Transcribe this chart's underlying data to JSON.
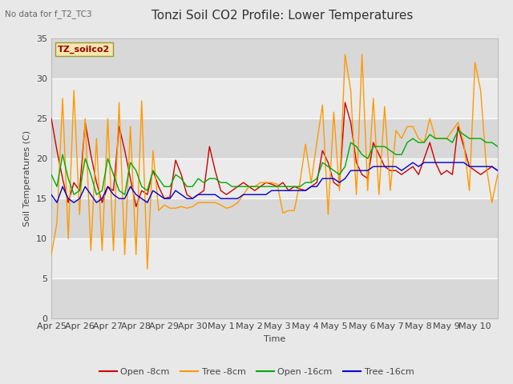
{
  "title": "Tonzi Soil CO2 Profile: Lower Temperatures",
  "subtitle": "No data for f_T2_TC3",
  "ylabel": "Soil Temperatures (C)",
  "xlabel": "Time",
  "ylim": [
    0,
    35
  ],
  "fig_bg_color": "#e8e8e8",
  "plot_bg_color": "#ffffff",
  "watermark": "TZ_soilco2",
  "x_labels": [
    "Apr 25",
    "Apr 26",
    "Apr 27",
    "Apr 28",
    "Apr 29",
    "Apr 30",
    "May 1",
    "May 2",
    "May 3",
    "May 4",
    "May 5",
    "May 6",
    "May 7",
    "May 8",
    "May 9",
    "May 10"
  ],
  "zebra_colors": [
    "#dcdcdc",
    "#f0f0f0"
  ],
  "zebra_bands": [
    [
      0,
      5
    ],
    [
      5,
      10
    ],
    [
      10,
      15
    ],
    [
      15,
      20
    ],
    [
      20,
      25
    ],
    [
      25,
      30
    ],
    [
      30,
      35
    ]
  ],
  "series": {
    "open_8cm": {
      "color": "#cc0000",
      "label": "Open -8cm",
      "values": [
        25.0,
        21.0,
        17.5,
        14.5,
        17.0,
        16.0,
        24.5,
        20.5,
        17.0,
        14.5,
        16.5,
        16.0,
        24.0,
        21.0,
        17.5,
        14.0,
        16.0,
        15.5,
        18.5,
        16.5,
        15.0,
        15.2,
        19.8,
        18.0,
        15.5,
        15.0,
        15.5,
        16.0,
        21.5,
        18.5,
        16.0,
        15.5,
        16.0,
        16.5,
        17.0,
        16.5,
        16.0,
        16.5,
        17.0,
        16.8,
        16.5,
        17.0,
        16.0,
        16.5,
        16.2,
        16.0,
        16.5,
        17.0,
        21.0,
        19.5,
        17.0,
        16.5,
        27.0,
        24.5,
        19.5,
        18.0,
        17.5,
        22.0,
        20.5,
        19.0,
        18.5,
        18.5,
        18.0,
        18.5,
        19.0,
        18.0,
        20.0,
        22.0,
        19.5,
        18.0,
        18.5,
        18.0,
        24.0,
        21.5,
        19.0,
        18.5,
        18.0,
        18.5,
        19.0,
        18.5
      ]
    },
    "tree_8cm": {
      "color": "#ff9900",
      "label": "Tree -8cm",
      "values": [
        8.0,
        12.0,
        27.5,
        10.0,
        28.5,
        13.0,
        25.0,
        8.5,
        22.5,
        8.5,
        25.0,
        8.5,
        27.0,
        8.0,
        24.0,
        8.0,
        27.2,
        6.2,
        21.0,
        13.5,
        14.2,
        13.8,
        13.8,
        14.0,
        13.8,
        14.0,
        14.5,
        14.5,
        14.5,
        14.5,
        14.2,
        13.8,
        14.0,
        14.5,
        15.5,
        16.5,
        16.5,
        17.0,
        17.0,
        17.0,
        16.8,
        13.2,
        13.5,
        13.5,
        17.0,
        21.8,
        17.0,
        22.0,
        26.7,
        13.0,
        25.8,
        16.0,
        33.0,
        28.5,
        15.5,
        33.0,
        16.0,
        27.5,
        15.5,
        26.5,
        16.0,
        23.5,
        22.5,
        24.0,
        24.0,
        22.5,
        22.0,
        25.0,
        22.5,
        22.5,
        22.5,
        23.5,
        24.5,
        22.0,
        16.0,
        32.0,
        28.5,
        19.0,
        14.5,
        18.0
      ]
    },
    "open_16cm": {
      "color": "#00aa00",
      "label": "Open -16cm",
      "values": [
        18.0,
        16.5,
        20.5,
        17.5,
        15.5,
        16.0,
        20.0,
        18.0,
        15.5,
        16.0,
        20.0,
        18.0,
        16.0,
        15.5,
        19.5,
        18.5,
        16.5,
        16.0,
        18.5,
        17.5,
        16.5,
        16.5,
        18.0,
        17.5,
        16.5,
        16.5,
        17.5,
        17.0,
        17.5,
        17.5,
        17.0,
        17.0,
        16.5,
        16.5,
        16.5,
        16.5,
        16.5,
        16.5,
        16.5,
        16.5,
        16.5,
        16.5,
        16.5,
        16.5,
        16.5,
        17.0,
        17.0,
        17.5,
        19.5,
        19.0,
        18.5,
        18.0,
        19.0,
        22.0,
        21.5,
        20.5,
        20.0,
        21.5,
        21.5,
        21.5,
        21.0,
        20.5,
        20.5,
        22.0,
        22.5,
        22.0,
        22.0,
        23.0,
        22.5,
        22.5,
        22.5,
        22.0,
        23.5,
        23.0,
        22.5,
        22.5,
        22.5,
        22.0,
        22.0,
        21.5
      ]
    },
    "tree_16cm": {
      "color": "#0000cc",
      "label": "Tree -16cm",
      "values": [
        15.5,
        14.5,
        16.5,
        15.0,
        14.5,
        15.0,
        16.5,
        15.5,
        14.5,
        15.0,
        16.5,
        15.5,
        15.0,
        15.0,
        16.5,
        15.5,
        15.0,
        14.5,
        16.0,
        15.5,
        15.0,
        15.0,
        16.0,
        15.5,
        15.0,
        15.0,
        15.5,
        15.5,
        15.5,
        15.5,
        15.0,
        15.0,
        15.0,
        15.0,
        15.5,
        15.5,
        15.5,
        15.5,
        15.5,
        16.0,
        16.0,
        16.0,
        16.0,
        16.0,
        16.0,
        16.0,
        16.5,
        16.5,
        17.5,
        17.5,
        17.5,
        17.0,
        17.5,
        18.5,
        18.5,
        18.5,
        18.5,
        19.0,
        19.0,
        19.0,
        19.0,
        19.0,
        18.5,
        19.0,
        19.5,
        19.0,
        19.5,
        19.5,
        19.5,
        19.5,
        19.5,
        19.5,
        19.5,
        19.5,
        19.0,
        19.0,
        19.0,
        19.0,
        19.0,
        18.5
      ]
    }
  },
  "n_points": 80,
  "x_ticks_positions": [
    0,
    5,
    10,
    15,
    20,
    25,
    30,
    35,
    40,
    45,
    50,
    55,
    60,
    65,
    70,
    75
  ],
  "yticks": [
    0,
    5,
    10,
    15,
    20,
    25,
    30,
    35
  ],
  "grid_color": "#c8c8c8",
  "title_fontsize": 11,
  "axis_fontsize": 8,
  "tick_fontsize": 8,
  "legend_fontsize": 8
}
